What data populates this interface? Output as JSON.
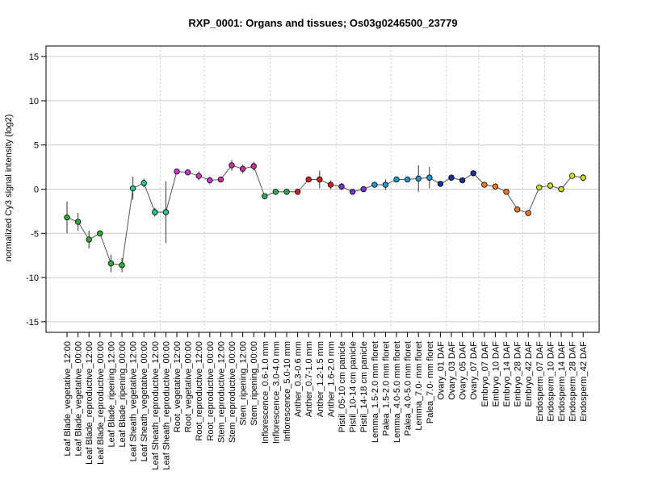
{
  "chart_data": {
    "type": "line",
    "title": "RXP_0001: Organs and tissues; Os03g0246500_23779",
    "ylabel": "normalized Cy3 signal intensity (log2)",
    "xlabel": "",
    "ylim": [
      -16.2,
      16.2
    ],
    "yticks": [
      -15,
      -10,
      -5,
      0,
      5,
      10,
      15
    ],
    "grid": {
      "horizontal": true,
      "vertical_group_separators": true
    },
    "group_separators_after_index": [
      8,
      12,
      18,
      24,
      29,
      34,
      37,
      41,
      43,
      48,
      53,
      58
    ],
    "categories": [
      "Leaf Blade_vegetative_12:00",
      "Leaf Blade_vegetative_00:00",
      "Leaf Blade_reproductive_12:00",
      "Leaf Blade_reproductive_00:00",
      "Leaf Blade_ripening_12:00",
      "Leaf Blade_ripening_00:00",
      "Leaf Sheath_vegetative_12:00",
      "Leaf Sheath_vegetative_00:00",
      "Leaf Sheath_reproductive_12:00",
      "Leaf Sheath_reproductive_00:00",
      "Root_vegetative_12:00",
      "Root_vegetative_00:00",
      "Root_reproductive_12:00",
      "Root_reproductive_00:00",
      "Stem_reproductive_12:00",
      "Stem_reproductive_00:00",
      "Stem_ripening_12:00",
      "Stem_ripening_00:00",
      "Inflorescence_0.6-1.0 mm",
      "Inflorescence_3.0-4.0 mm",
      "Inflorescence_5.0-10 mm",
      "Anther_0.3-0.6 mm",
      "Anther_0.7-1.0 mm",
      "Anther_1.2-1.5 mm",
      "Anther_1.6-2.0 mm",
      "Pistil_05-10 cm panicle",
      "Pistil_10-14 cm panicle",
      "Pistil_14-18 cm panicle",
      "Lemma_1.5-2.0 mm floret",
      "Palea_1.5-2.0 mm floret",
      "Lemma_4.0-5.0 mm floret",
      "Palea_4.0-5.0 mm floret",
      "Lemma_7.0- mm floret",
      "Palea_7.0- mm floret",
      "Ovary_01 DAF",
      "Ovary_03 DAF",
      "Ovary_05 DAF",
      "Ovary_07 DAF",
      "Embryo_07 DAF",
      "Embryo_10 DAF",
      "Embryo_14 DAF",
      "Embryo_28 DAF",
      "Embryo_42 DAF",
      "Endosperm_07 DAF",
      "Endosperm_10 DAF",
      "Endosperm_14 DAF",
      "Endosperm_28 DAF",
      "Endosperm_42 DAF"
    ],
    "values": [
      -3.2,
      -3.7,
      -5.7,
      -5.0,
      -8.4,
      -8.6,
      0.1,
      0.7,
      -2.6,
      -2.6,
      2.0,
      1.9,
      1.5,
      1.0,
      1.1,
      2.7,
      2.3,
      2.6,
      -0.8,
      -0.3,
      -0.3,
      -0.3,
      1.1,
      1.1,
      0.5,
      0.3,
      -0.3,
      0.0,
      0.5,
      0.5,
      1.1,
      1.1,
      1.2,
      1.3,
      0.6,
      1.3,
      1.0,
      1.8,
      0.5,
      0.3,
      -0.3,
      -2.3,
      -2.7,
      0.2,
      0.4,
      0.0,
      1.5,
      1.3
    ],
    "errors": [
      1.8,
      1.0,
      1.0,
      0.3,
      1.0,
      0.8,
      1.3,
      0.5,
      0.5,
      3.5,
      0.2,
      0.2,
      0.5,
      0.4,
      0.3,
      0.6,
      0.5,
      0.5,
      0.3,
      0.3,
      0.3,
      0.3,
      0.3,
      1.0,
      0.5,
      0.4,
      0.3,
      0.2,
      0.3,
      0.6,
      0.2,
      0.2,
      1.5,
      1.2,
      0.2,
      0.2,
      0.2,
      0.2,
      0.2,
      0.2,
      0.3,
      0.2,
      0.2,
      0.3,
      0.3,
      0.2,
      0.2,
      0.4
    ],
    "point_colors": [
      "#33aa33",
      "#33aa33",
      "#33aa33",
      "#33aa33",
      "#33aa33",
      "#33aa33",
      "#22cc88",
      "#22cc88",
      "#22cc88",
      "#22cc88",
      "#cc33cc",
      "#cc33cc",
      "#cc33cc",
      "#cc33cc",
      "#cc3399",
      "#cc3399",
      "#cc3399",
      "#cc3399",
      "#33aa55",
      "#33aa55",
      "#33aa55",
      "#cc2222",
      "#cc2222",
      "#cc2222",
      "#cc2222",
      "#7733cc",
      "#7733cc",
      "#7733cc",
      "#2299cc",
      "#2299cc",
      "#2299cc",
      "#2299cc",
      "#2299cc",
      "#2299cc",
      "#1a2f99",
      "#1a2f99",
      "#1a2f99",
      "#1a2f99",
      "#ee7722",
      "#ee7722",
      "#ee7722",
      "#ee7722",
      "#ee7722",
      "#ccdd22",
      "#ccdd22",
      "#ccdd22",
      "#ccdd22",
      "#ccdd22"
    ]
  }
}
